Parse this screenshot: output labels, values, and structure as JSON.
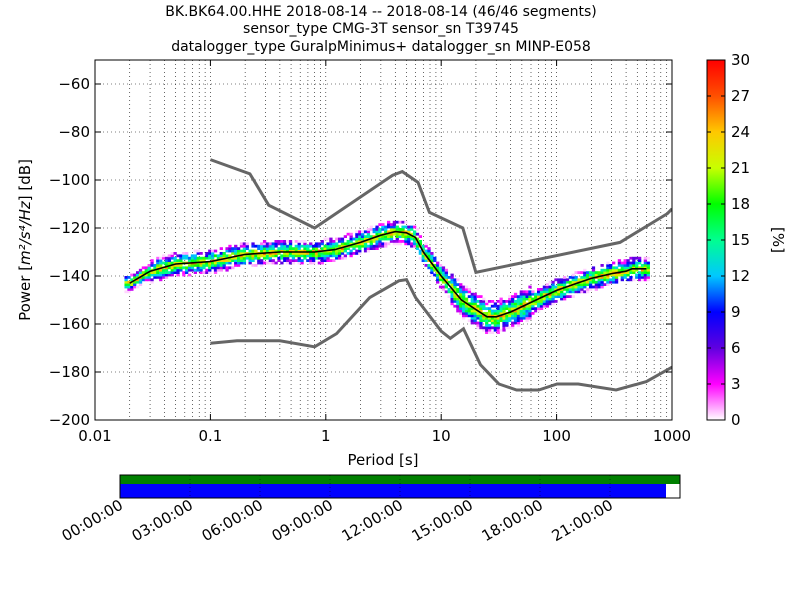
{
  "title_lines": [
    "BK.BK64.00.HHE   2018-08-14 -- 2018-08-14  (46/46 segments)",
    "sensor_type CMG-3T sensor_sn T39745",
    "datalogger_type GuralpMinimus+ datalogger_sn MINP-E058"
  ],
  "chart_data": {
    "type": "heatmap",
    "xlabel": "Period [s]",
    "ylabel_prefix": "Power [",
    "ylabel_unit": "m²/s⁴/Hz",
    "ylabel_suffix": "] [dB]",
    "xscale": "log",
    "xlim": [
      0.01,
      1000
    ],
    "ylim": [
      -200,
      -50
    ],
    "x_ticks": [
      0.01,
      0.1,
      1,
      10,
      100,
      1000
    ],
    "x_tick_labels": [
      "0.01",
      "0.1",
      "1",
      "10",
      "100",
      "1000"
    ],
    "y_ticks": [
      -200,
      -180,
      -160,
      -140,
      -120,
      -100,
      -80,
      -60
    ],
    "y_tick_labels": [
      "−200",
      "−180",
      "−160",
      "−140",
      "−120",
      "−100",
      "−80",
      "−60"
    ],
    "grid": true,
    "nhnm": [
      [
        0.1,
        -168
      ],
      [
        0.17,
        -167
      ],
      [
        0.4,
        -167
      ],
      [
        0.8,
        -169.5
      ],
      [
        1.24,
        -164
      ],
      [
        2.4,
        -149
      ],
      [
        4.3,
        -142
      ],
      [
        5,
        -141.5
      ],
      [
        6,
        -149
      ],
      [
        10,
        -163
      ],
      [
        12,
        -166
      ],
      [
        15.6,
        -162
      ],
      [
        21.9,
        -177
      ],
      [
        31.6,
        -185
      ],
      [
        45,
        -187.5
      ],
      [
        70,
        -187.5
      ],
      [
        101,
        -185
      ],
      [
        154,
        -185
      ],
      [
        328,
        -187.5
      ],
      [
        600,
        -184
      ],
      [
        1000,
        -178
      ]
    ],
    "nlnm": [
      [
        0.1,
        -91.5
      ],
      [
        0.22,
        -97.4
      ],
      [
        0.32,
        -110.5
      ],
      [
        0.8,
        -120
      ],
      [
        3.8,
        -98
      ],
      [
        4.6,
        -96.5
      ],
      [
        6.3,
        -101
      ],
      [
        7.9,
        -113.5
      ],
      [
        15.4,
        -120
      ],
      [
        20,
        -138.5
      ],
      [
        354,
        -126
      ],
      [
        912,
        -114
      ],
      [
        1000,
        -112
      ]
    ],
    "mean_curve": [
      [
        0.02,
        -143
      ],
      [
        0.03,
        -138
      ],
      [
        0.05,
        -135
      ],
      [
        0.1,
        -134
      ],
      [
        0.2,
        -131
      ],
      [
        0.4,
        -130
      ],
      [
        0.8,
        -130
      ],
      [
        1.2,
        -129
      ],
      [
        2,
        -126
      ],
      [
        3,
        -123
      ],
      [
        4,
        -121.5
      ],
      [
        5,
        -122
      ],
      [
        6,
        -124
      ],
      [
        7,
        -130
      ],
      [
        10,
        -140
      ],
      [
        15,
        -150
      ],
      [
        20,
        -154
      ],
      [
        25,
        -157
      ],
      [
        30,
        -157
      ],
      [
        40,
        -155
      ],
      [
        60,
        -151
      ],
      [
        100,
        -146
      ],
      [
        150,
        -143
      ],
      [
        200,
        -141
      ],
      [
        300,
        -139
      ],
      [
        400,
        -138
      ],
      [
        450,
        -137
      ],
      [
        600,
        -137
      ]
    ],
    "colorbar": {
      "label": "[%]",
      "min": 0,
      "max": 30,
      "ticks": [
        0,
        3,
        6,
        9,
        12,
        15,
        18,
        21,
        24,
        27,
        30
      ],
      "tick_labels": [
        "0",
        "3",
        "6",
        "9",
        "12",
        "15",
        "18",
        "21",
        "24",
        "27",
        "30"
      ],
      "stops": [
        "#ffffff",
        "#ff00ff",
        "#6000e0",
        "#0000ff",
        "#00c8ff",
        "#00ff90",
        "#00ff00",
        "#c8ff00",
        "#ffc800",
        "#ff5000",
        "#ff0000"
      ]
    },
    "timeline": {
      "tick_labels": [
        "00:00:00",
        "03:00:00",
        "06:00:00",
        "09:00:00",
        "12:00:00",
        "15:00:00",
        "18:00:00",
        "21:00:00"
      ],
      "coverage_top_fraction": 1.0,
      "coverage_bottom_fraction": 0.975,
      "top_color": "#008000",
      "bottom_color": "#0000ff"
    }
  }
}
